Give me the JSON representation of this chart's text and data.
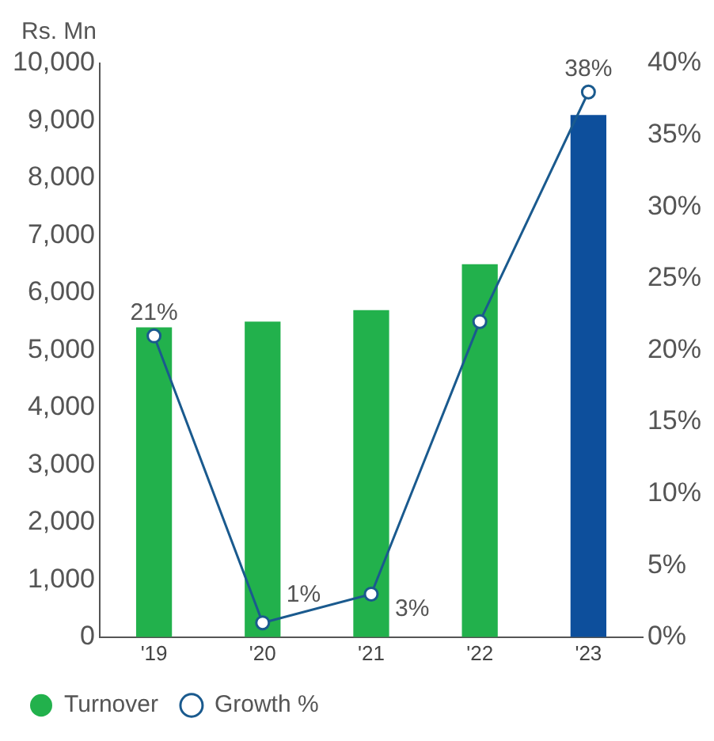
{
  "chart_data": {
    "type": "bar",
    "ylabel": "Rs. Mn",
    "categories": [
      "'19",
      "'20",
      "'21",
      "'22",
      "'23"
    ],
    "series": [
      {
        "name": "Turnover",
        "colors": [
          "#22b14c",
          "#22b14c",
          "#22b14c",
          "#22b14c",
          "#0d4f9c"
        ],
        "values": [
          5400,
          5500,
          5700,
          6500,
          9100
        ]
      },
      {
        "name": "Growth %",
        "type": "line",
        "axis": "y2",
        "color": "#1a5a8e",
        "marker": "circle",
        "values": [
          21,
          1,
          3,
          22,
          38
        ],
        "value_labels": [
          "21%",
          "1%",
          "3%",
          null,
          "38%"
        ]
      }
    ],
    "ylim": [
      0,
      10000
    ],
    "yticks": [
      {
        "value": 0,
        "label": "0"
      },
      {
        "value": 1000,
        "label": "1,000"
      },
      {
        "value": 2000,
        "label": "2,000"
      },
      {
        "value": 3000,
        "label": "3,000"
      },
      {
        "value": 4000,
        "label": "4,000"
      },
      {
        "value": 5000,
        "label": "5,000"
      },
      {
        "value": 6000,
        "label": "6,000"
      },
      {
        "value": 7000,
        "label": "7,000"
      },
      {
        "value": 8000,
        "label": "8,000"
      },
      {
        "value": 9000,
        "label": "9,000"
      },
      {
        "value": 10000,
        "label": "10,000"
      }
    ],
    "y2lim": [
      0,
      40
    ],
    "y2ticks": [
      {
        "value": 0,
        "label": "0%"
      },
      {
        "value": 5,
        "label": "5%"
      },
      {
        "value": 10,
        "label": "10%"
      },
      {
        "value": 15,
        "label": "15%"
      },
      {
        "value": 20,
        "label": "20%"
      },
      {
        "value": 25,
        "label": "25%"
      },
      {
        "value": 30,
        "label": "30%"
      },
      {
        "value": 35,
        "label": "35%"
      },
      {
        "value": 40,
        "label": "40%"
      }
    ],
    "grid": false,
    "legend": "bottom left"
  }
}
